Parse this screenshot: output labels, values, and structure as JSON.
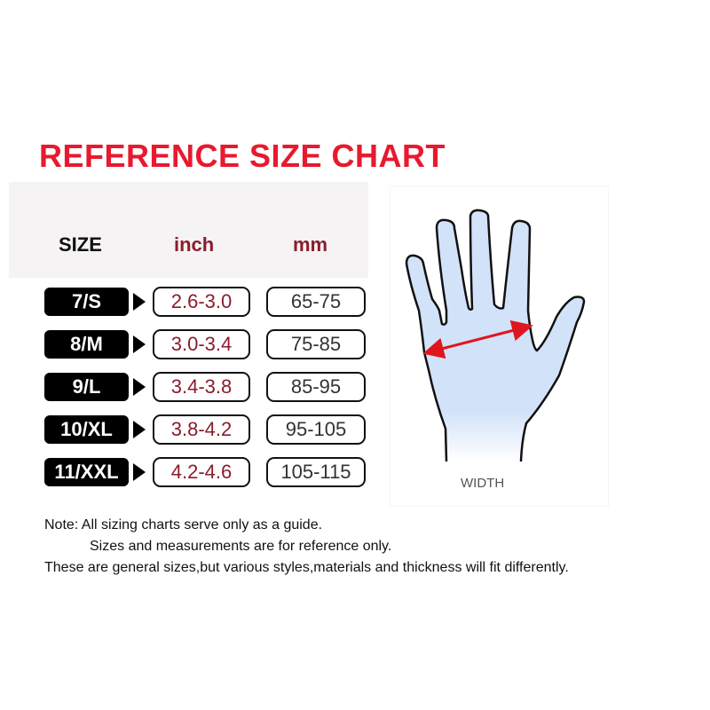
{
  "title": "REFERENCE SIZE CHART",
  "headers": {
    "size": "SIZE",
    "inch": "inch",
    "mm": "mm"
  },
  "colors": {
    "title": "#e8192f",
    "inch": "#8b1c2c",
    "hand_fill": "#d2e2f8",
    "arrow": "#e0161e"
  },
  "rows": [
    {
      "size": "7/S",
      "inch": "2.6-3.0",
      "mm": "65-75"
    },
    {
      "size": "8/M",
      "inch": "3.0-3.4",
      "mm": "75-85"
    },
    {
      "size": "9/L",
      "inch": "3.4-3.8",
      "mm": "85-95"
    },
    {
      "size": "10/XL",
      "inch": "3.8-4.2",
      "mm": "95-105"
    },
    {
      "size": "11/XXL",
      "inch": "4.2-4.6",
      "mm": "105-115"
    }
  ],
  "diagram": {
    "label": "WIDTH"
  },
  "notes": [
    "Note: All sizing charts serve only as a guide.",
    "Sizes and measurements are for reference only.",
    "These are general sizes,but various styles,materials and thickness will fit differently."
  ]
}
